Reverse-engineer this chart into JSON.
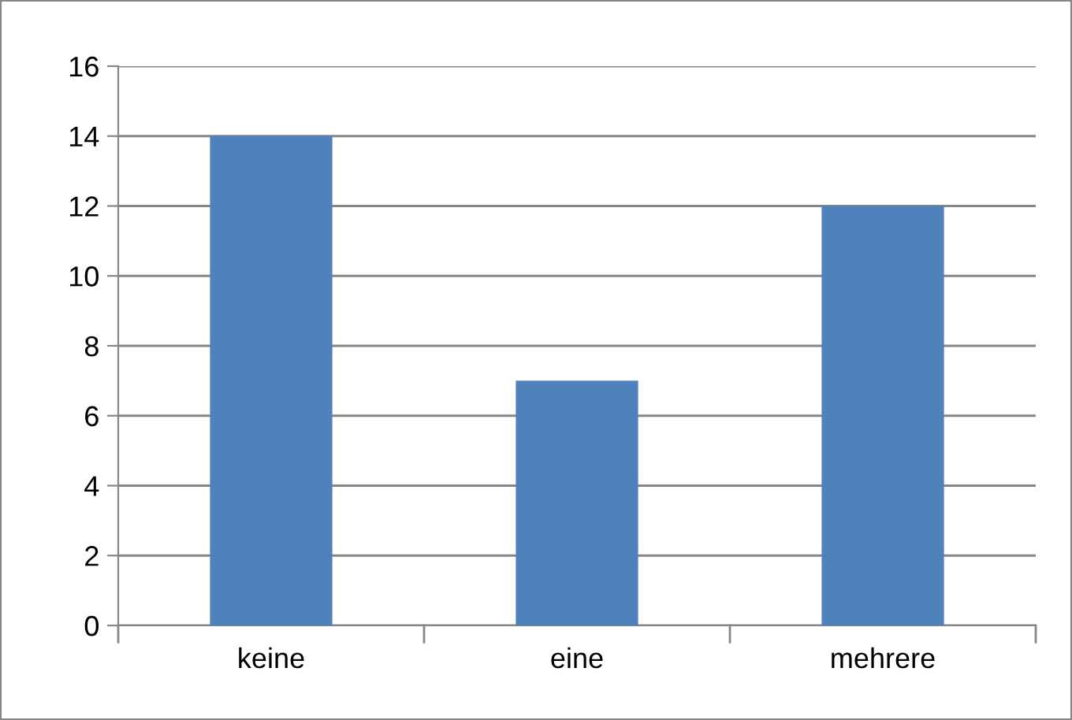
{
  "chart_data": {
    "type": "bar",
    "categories": [
      "keine",
      "eine",
      "mehrere"
    ],
    "values": [
      14,
      7,
      12
    ],
    "color": "#4f81bd",
    "ylim": [
      0,
      16
    ],
    "yticks": [
      0,
      2,
      4,
      6,
      8,
      10,
      12,
      14,
      16
    ],
    "grid": "y",
    "legend": false
  }
}
